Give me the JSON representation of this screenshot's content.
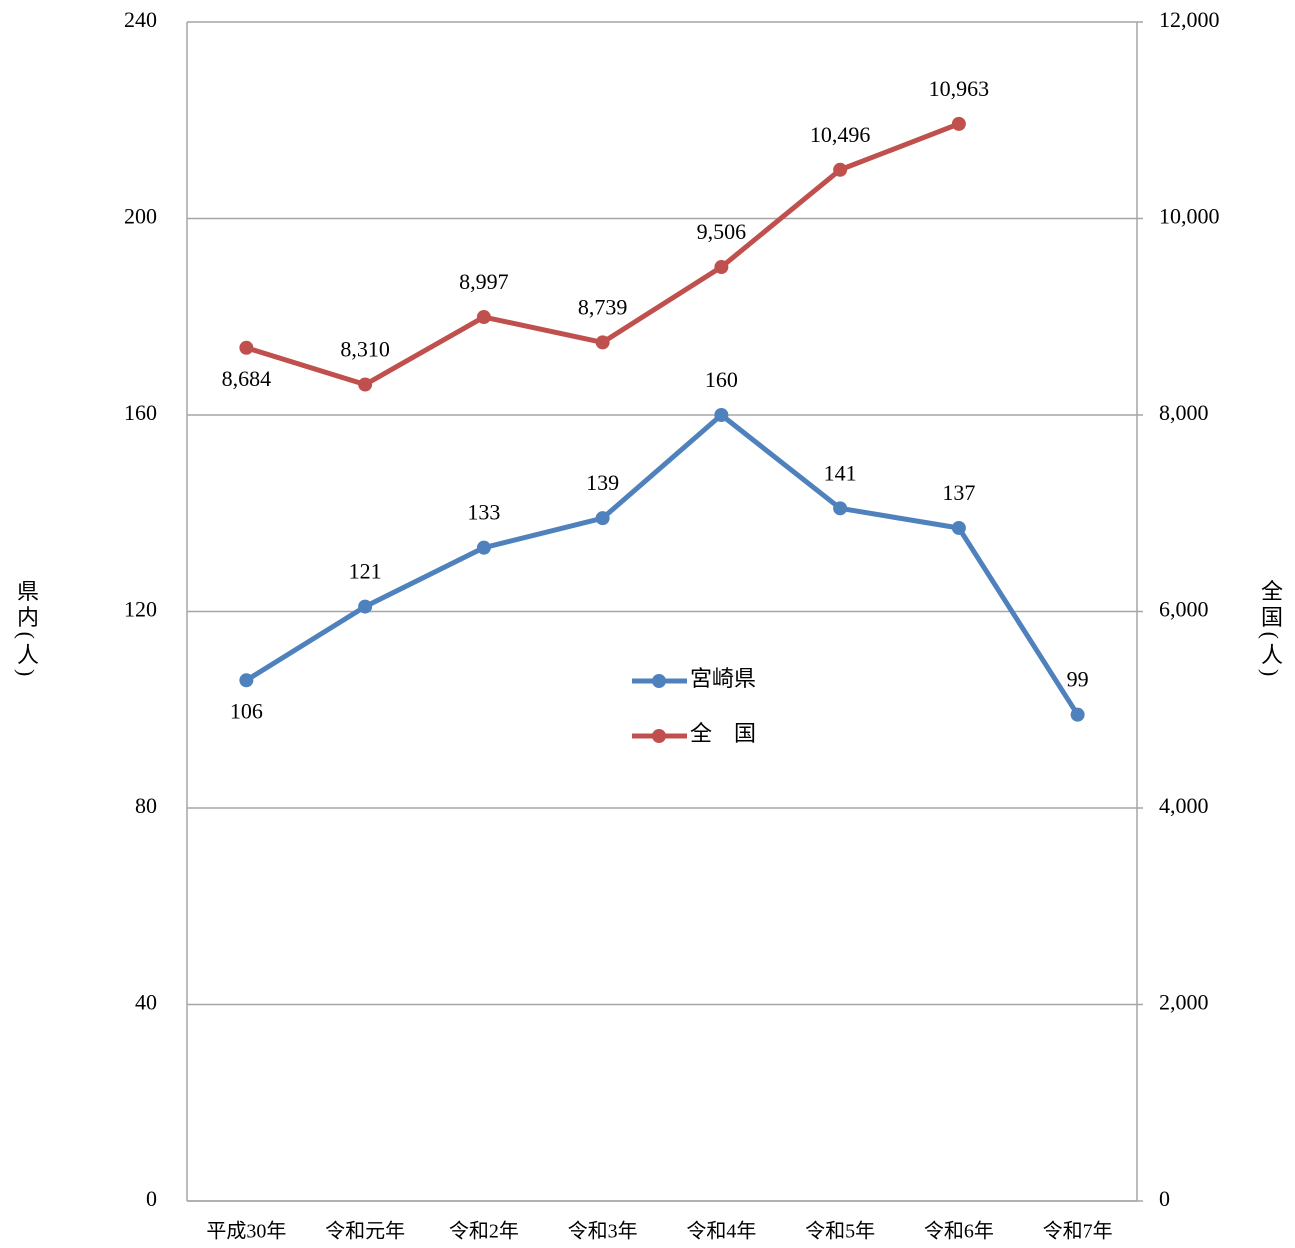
{
  "chart_data": {
    "type": "line",
    "y_label": "県内(人)",
    "y2_label": "全国(人)",
    "categories": [
      "平成30年",
      "令和元年",
      "令和2年",
      "令和3年",
      "令和4年",
      "令和5年",
      "令和6年",
      "令和7年"
    ],
    "series": [
      {
        "name": "宮崎県",
        "color": "#4f81bd",
        "values": [
          106,
          121,
          133,
          139,
          160,
          141,
          137,
          99
        ]
      },
      {
        "name": "全　国",
        "color": "#c0504d",
        "axis": "y2",
        "values": [
          8684,
          8310,
          8997,
          8739,
          9506,
          10496,
          10963,
          null
        ],
        "value_labels": [
          "8,684",
          "8,310",
          "8,997",
          "8,739",
          "9,506",
          "10,496",
          "10,963",
          null
        ]
      }
    ],
    "ylim": [
      0,
      240
    ],
    "yticks": [
      0,
      40,
      80,
      120,
      160,
      200,
      240
    ],
    "y2lim": [
      0,
      12000
    ],
    "y2ticks": [
      0,
      {
        "value": 2000,
        "label": "2,000"
      },
      {
        "value": 4000,
        "label": "4,000"
      },
      {
        "value": 6000,
        "label": "6,000"
      },
      {
        "value": 8000,
        "label": "8,000"
      },
      {
        "value": 10000,
        "label": "10,000"
      },
      {
        "value": 12000,
        "label": "12,000"
      }
    ],
    "grid": true,
    "legend": "center"
  }
}
